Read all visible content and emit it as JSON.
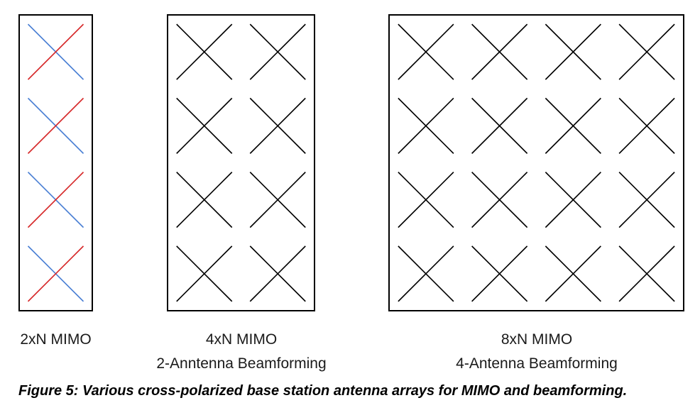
{
  "panels": [
    {
      "title": "2xN MIMO",
      "subtitle": "",
      "columns": 1,
      "rows": 4,
      "element_colors": {
        "positive_slope": "#d62728",
        "negative_slope": "#4a7fd4"
      }
    },
    {
      "title": "4xN MIMO",
      "subtitle": "2-Anntenna Beamforming",
      "columns": 2,
      "rows": 4,
      "element_colors": {
        "positive_slope": "#000000",
        "negative_slope": "#000000"
      }
    },
    {
      "title": "8xN MIMO",
      "subtitle": "4-Antenna Beamforming",
      "columns": 4,
      "rows": 4,
      "element_colors": {
        "positive_slope": "#000000",
        "negative_slope": "#000000"
      }
    }
  ],
  "caption": "Figure 5: Various cross-polarized base station antenna arrays for MIMO and beamforming."
}
